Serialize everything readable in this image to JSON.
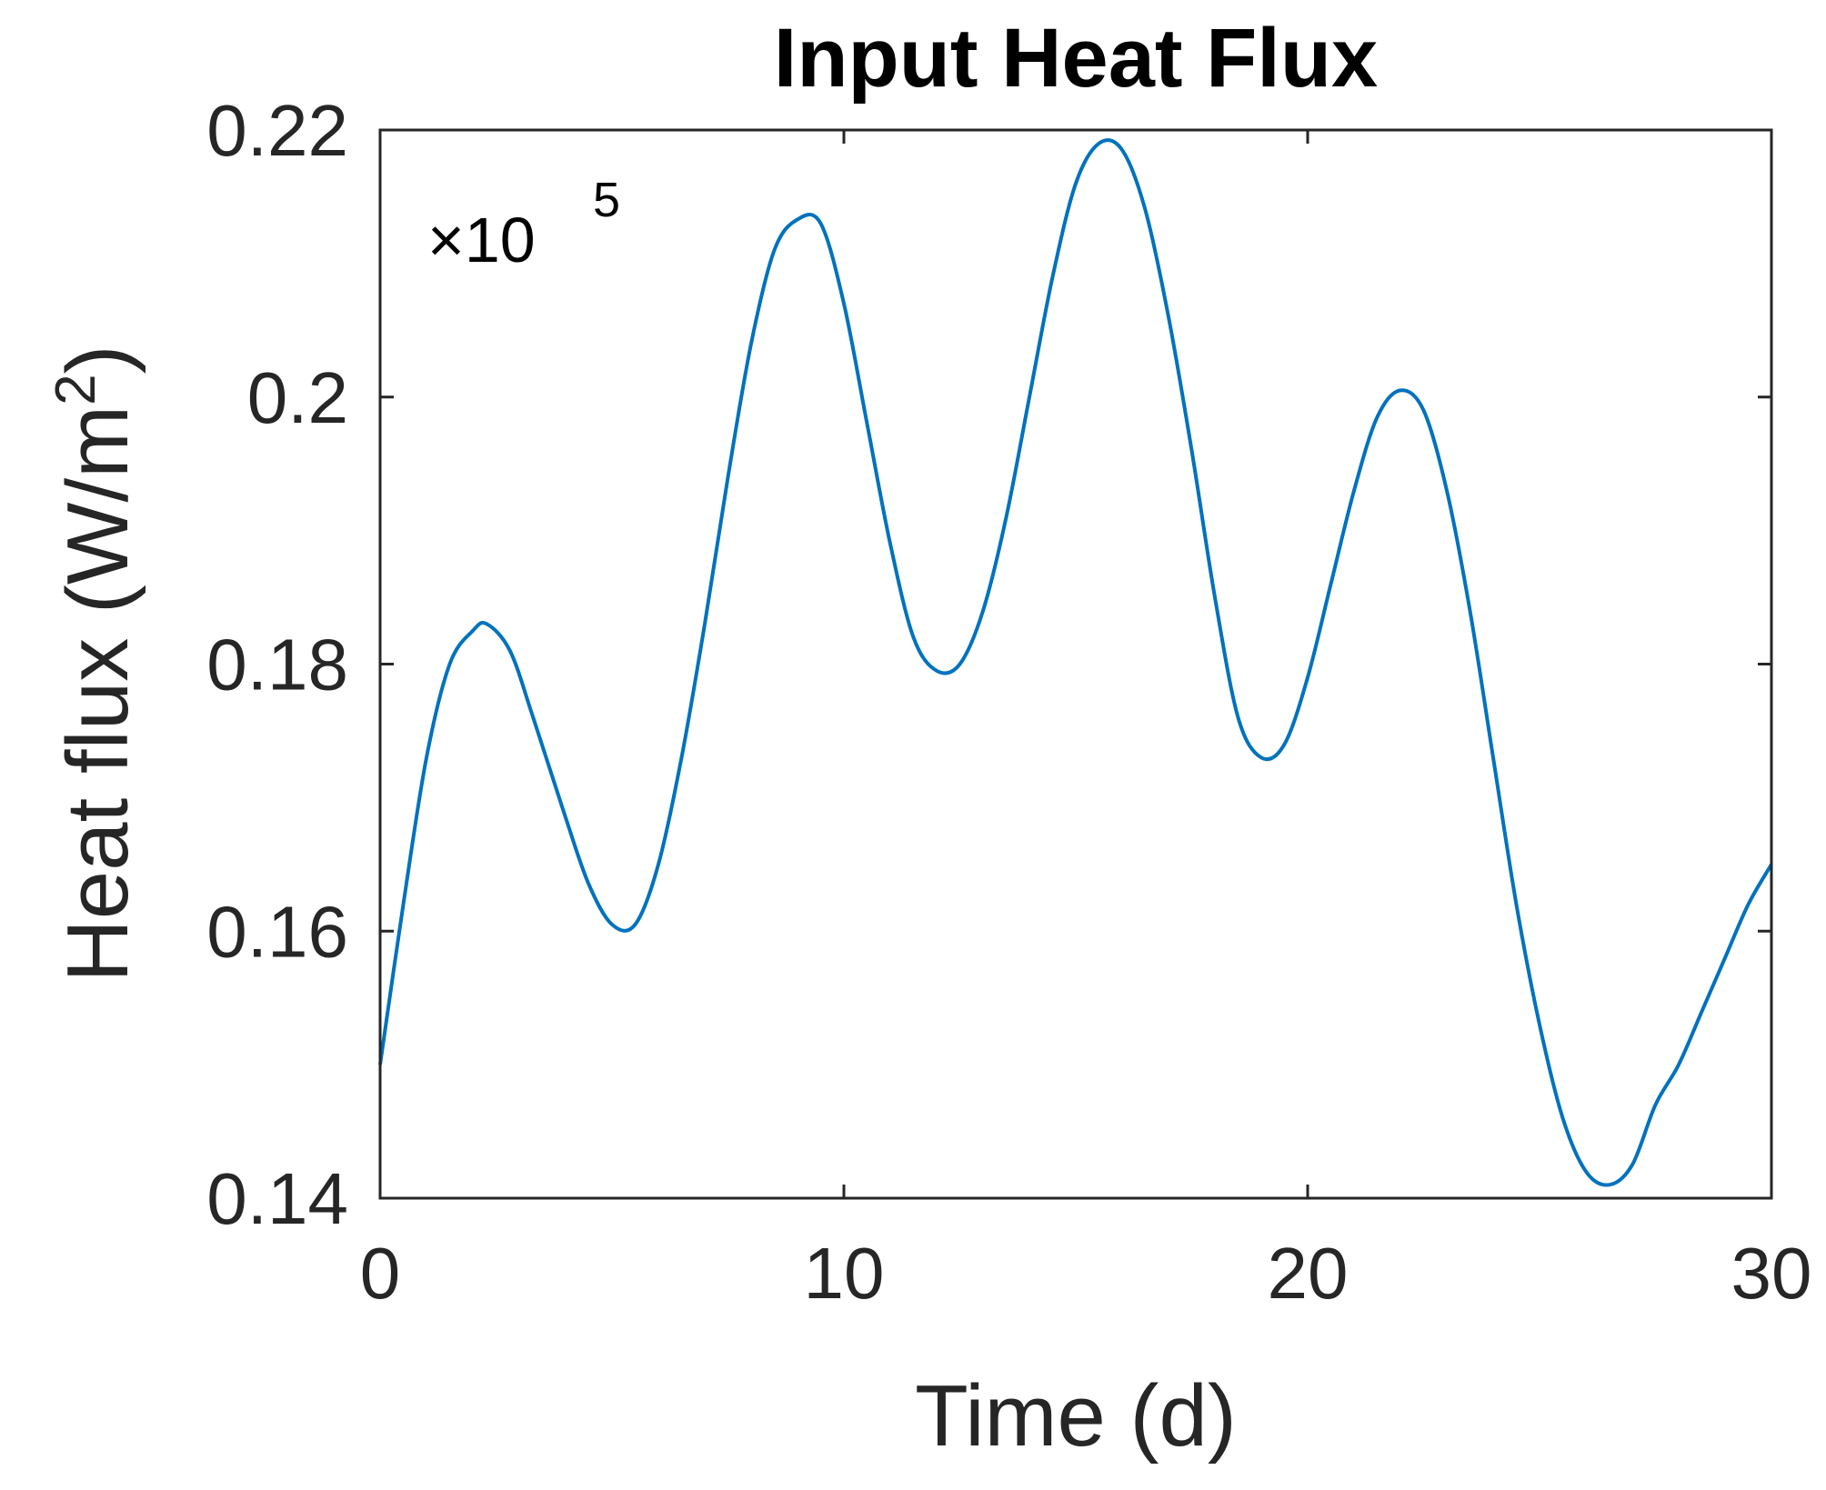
{
  "chart_data": {
    "type": "line",
    "title": "Input Heat Flux",
    "xlabel": "Time (d)",
    "ylabel": "Heat flux (W/m",
    "ylabel_superscript": "2",
    "ylabel_suffix": ")",
    "exponent_label": {
      "base": "×10",
      "power": "5"
    },
    "xlim": [
      0,
      30
    ],
    "ylim": [
      0.14,
      0.22
    ],
    "x_ticks": [
      0,
      10,
      20,
      30
    ],
    "x_tick_labels": [
      "0",
      "10",
      "20",
      "30"
    ],
    "y_ticks": [
      0.14,
      0.16,
      0.18,
      0.2,
      0.22
    ],
    "y_tick_labels": [
      "0.14",
      "0.16",
      "0.18",
      "0.2",
      "0.22"
    ],
    "grid": false,
    "series": [
      {
        "color": "#0072BD",
        "x": [
          0,
          0.5,
          1,
          1.5,
          2,
          2.3,
          2.8,
          3.3,
          4,
          4.5,
          5,
          5.5,
          6,
          6.5,
          7,
          7.5,
          8,
          8.5,
          9,
          9.5,
          10,
          10.5,
          11,
          11.5,
          12,
          12.5,
          13,
          13.5,
          14,
          14.5,
          15,
          15.5,
          16,
          16.5,
          17,
          17.5,
          18,
          18.5,
          19,
          19.5,
          20,
          20.5,
          21,
          21.5,
          22,
          22.5,
          23,
          23.5,
          24,
          24.5,
          25,
          25.5,
          26,
          26.5,
          27,
          27.5,
          28,
          28.5,
          29,
          29.5,
          30
        ],
        "y": [
          0.15,
          0.162,
          0.173,
          0.18,
          0.1825,
          0.183,
          0.181,
          0.176,
          0.1685,
          0.1635,
          0.1605,
          0.1605,
          0.165,
          0.173,
          0.183,
          0.194,
          0.204,
          0.211,
          0.2133,
          0.213,
          0.207,
          0.198,
          0.189,
          0.182,
          0.1795,
          0.18,
          0.184,
          0.191,
          0.2,
          0.209,
          0.216,
          0.219,
          0.2185,
          0.214,
          0.206,
          0.196,
          0.185,
          0.176,
          0.173,
          0.174,
          0.179,
          0.186,
          0.193,
          0.1985,
          0.2005,
          0.199,
          0.193,
          0.184,
          0.173,
          0.162,
          0.153,
          0.146,
          0.142,
          0.141,
          0.1425,
          0.147,
          0.15,
          0.154,
          0.158,
          0.162,
          0.165
        ]
      }
    ]
  }
}
